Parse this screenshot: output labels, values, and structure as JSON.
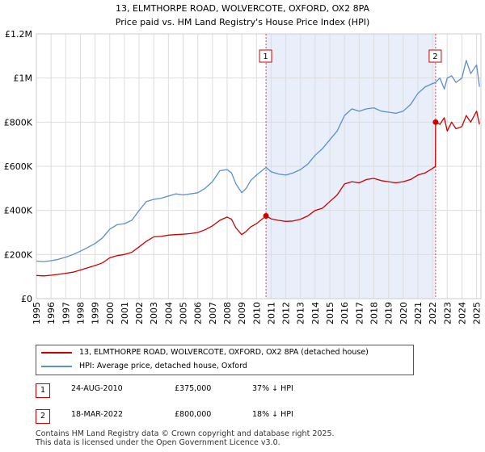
{
  "chart_data": {
    "type": "line",
    "title": "13, ELMTHORPE ROAD, WOLVERCOTE, OXFORD, OX2 8PA",
    "subtitle": "Price paid vs. HM Land Registry's House Price Index (HPI)",
    "xlabel": "",
    "ylabel": "",
    "xlim": [
      1995,
      2025.3
    ],
    "ylim": [
      0,
      1200000
    ],
    "y_ticks": [
      {
        "value": 0,
        "label": "£0"
      },
      {
        "value": 200000,
        "label": "£200K"
      },
      {
        "value": 400000,
        "label": "£400K"
      },
      {
        "value": 600000,
        "label": "£600K"
      },
      {
        "value": 800000,
        "label": "£800K"
      },
      {
        "value": 1000000,
        "label": "£1M"
      },
      {
        "value": 1200000,
        "label": "£1.2M"
      }
    ],
    "x_ticks": [
      "1995",
      "1996",
      "1997",
      "1998",
      "1999",
      "2000",
      "2001",
      "2002",
      "2003",
      "2004",
      "2005",
      "2006",
      "2007",
      "2008",
      "2009",
      "2010",
      "2011",
      "2012",
      "2013",
      "2014",
      "2015",
      "2016",
      "2017",
      "2018",
      "2019",
      "2020",
      "2021",
      "2022",
      "2023",
      "2024",
      "2025"
    ],
    "grid": true,
    "shaded_region": {
      "from": 2010.65,
      "to": 2022.21
    },
    "series": [
      {
        "name": "13, ELMTHORPE ROAD, WOLVERCOTE, OXFORD, OX2 8PA (detached house)",
        "color": "#cc0000",
        "x": [
          1995,
          1995.5,
          1996,
          1996.5,
          1997,
          1997.5,
          1998,
          1998.5,
          1999,
          1999.5,
          2000,
          2000.5,
          2001,
          2001.5,
          2002,
          2002.5,
          2003,
          2003.5,
          2004,
          2004.5,
          2005,
          2005.5,
          2006,
          2006.5,
          2007,
          2007.5,
          2008,
          2008.3,
          2008.6,
          2009,
          2009.3,
          2009.6,
          2010,
          2010.65,
          2011,
          2011.5,
          2012,
          2012.5,
          2013,
          2013.5,
          2014,
          2014.5,
          2015,
          2015.5,
          2016,
          2016.5,
          2017,
          2017.5,
          2018,
          2018.5,
          2019,
          2019.5,
          2020,
          2020.5,
          2021,
          2021.5,
          2022.0,
          2022.2,
          2022.21,
          2022.5,
          2022.8,
          2023,
          2023.3,
          2023.6,
          2024,
          2024.3,
          2024.6,
          2025,
          2025.2
        ],
        "values": [
          105000,
          103000,
          106000,
          110000,
          115000,
          120000,
          130000,
          140000,
          150000,
          162000,
          185000,
          195000,
          200000,
          210000,
          235000,
          260000,
          280000,
          282000,
          288000,
          290000,
          292000,
          295000,
          300000,
          312000,
          330000,
          355000,
          370000,
          360000,
          320000,
          290000,
          305000,
          325000,
          340000,
          375000,
          362000,
          355000,
          350000,
          352000,
          360000,
          375000,
          400000,
          410000,
          440000,
          470000,
          520000,
          530000,
          525000,
          540000,
          545000,
          535000,
          530000,
          525000,
          530000,
          540000,
          560000,
          570000,
          590000,
          600000,
          800000,
          790000,
          820000,
          760000,
          800000,
          770000,
          780000,
          830000,
          800000,
          850000,
          790000
        ]
      },
      {
        "name": "HPI: Average price, detached house, Oxford",
        "color": "#5b8fcf",
        "x": [
          1995,
          1995.5,
          1996,
          1996.5,
          1997,
          1997.5,
          1998,
          1998.5,
          1999,
          1999.5,
          2000,
          2000.5,
          2001,
          2001.5,
          2002,
          2002.5,
          2003,
          2003.5,
          2004,
          2004.5,
          2005,
          2005.5,
          2006,
          2006.5,
          2007,
          2007.5,
          2008,
          2008.3,
          2008.6,
          2009,
          2009.3,
          2009.6,
          2010,
          2010.65,
          2011,
          2011.5,
          2012,
          2012.5,
          2013,
          2013.5,
          2014,
          2014.5,
          2015,
          2015.5,
          2016,
          2016.5,
          2017,
          2017.5,
          2018,
          2018.5,
          2019,
          2019.5,
          2020,
          2020.5,
          2021,
          2021.5,
          2022.0,
          2022.21,
          2022.5,
          2022.8,
          2023,
          2023.3,
          2023.6,
          2024,
          2024.3,
          2024.6,
          2025,
          2025.2
        ],
        "values": [
          170000,
          168000,
          172000,
          178000,
          188000,
          200000,
          215000,
          232000,
          250000,
          275000,
          315000,
          335000,
          340000,
          355000,
          400000,
          440000,
          450000,
          455000,
          465000,
          475000,
          470000,
          475000,
          480000,
          500000,
          530000,
          580000,
          585000,
          570000,
          520000,
          480000,
          500000,
          535000,
          560000,
          595000,
          575000,
          565000,
          560000,
          570000,
          585000,
          610000,
          650000,
          680000,
          720000,
          760000,
          830000,
          860000,
          850000,
          860000,
          865000,
          850000,
          845000,
          840000,
          850000,
          880000,
          930000,
          960000,
          975000,
          980000,
          1000000,
          950000,
          1000000,
          1010000,
          980000,
          1000000,
          1080000,
          1020000,
          1060000,
          960000
        ]
      }
    ],
    "markers": [
      {
        "label": "1",
        "x": 2010.65,
        "value": 375000
      },
      {
        "label": "2",
        "x": 2022.21,
        "value": 800000
      }
    ]
  },
  "legend": {
    "property_label": "13, ELMTHORPE ROAD, WOLVERCOTE, OXFORD, OX2 8PA (detached house)",
    "hpi_label": "HPI: Average price, detached house, Oxford"
  },
  "sales": [
    {
      "num": "1",
      "date": "24-AUG-2010",
      "price": "£375,000",
      "hpi": "37% ↓ HPI"
    },
    {
      "num": "2",
      "date": "18-MAR-2022",
      "price": "£800,000",
      "hpi": "18% ↓ HPI"
    }
  ],
  "footer": {
    "line1": "Contains HM Land Registry data © Crown copyright and database right 2025.",
    "line2": "This data is licensed under the Open Government Licence v3.0."
  },
  "colors": {
    "property": "#cc0000",
    "hpi": "#5b8fcf",
    "shade": "#e8eefa",
    "grid": "#dddddd"
  }
}
